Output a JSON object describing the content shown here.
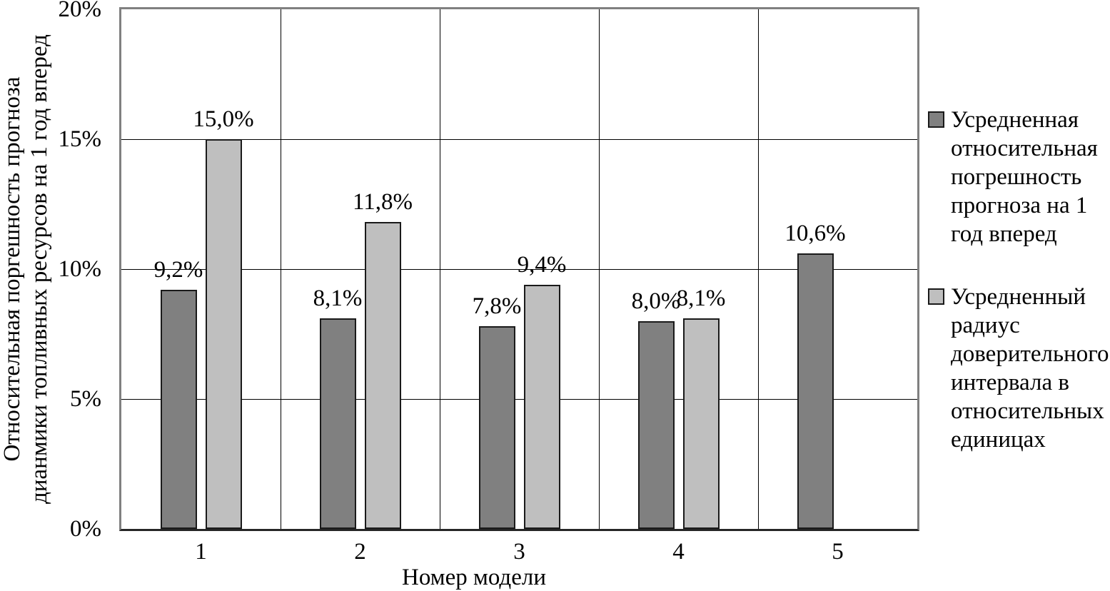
{
  "chart_data": {
    "type": "bar",
    "categories": [
      "1",
      "2",
      "3",
      "4",
      "5"
    ],
    "series": [
      {
        "name": "Усредненная относительная погрешность прогноза на 1 год вперед",
        "color": "#808080",
        "values": [
          9.2,
          8.1,
          7.8,
          8.0,
          10.6
        ],
        "data_labels": [
          "9,2%",
          "8,1%",
          "7,8%",
          "8,0%",
          "10,6%"
        ]
      },
      {
        "name": "Усредненный радиус доверительного интервала в относительных единицах",
        "color": "#BFBFBF",
        "values": [
          15.0,
          11.8,
          9.4,
          8.1,
          null
        ],
        "data_labels": [
          "15,0%",
          "11,8%",
          "9,4%",
          "8,1%",
          ""
        ]
      }
    ],
    "xlabel": "Номер модели",
    "ylabel_lines": [
      "Относительная поргешность прогноза",
      "дианмики топливных ресурсов на 1 год вперед"
    ],
    "ylim": [
      0,
      20
    ],
    "yticks": [
      {
        "value": 0,
        "label": "0%"
      },
      {
        "value": 5,
        "label": "5%"
      },
      {
        "value": 10,
        "label": "10%"
      },
      {
        "value": 15,
        "label": "15%"
      },
      {
        "value": 20,
        "label": "20%"
      }
    ],
    "grid": {
      "horizontal": true,
      "vertical": true
    },
    "legend_position": "right",
    "colors": {
      "bar_border": "#1a1a1a",
      "plot_border": "#808080",
      "axis_line": "#262626",
      "gridline": "#000000",
      "text": "#000000"
    }
  }
}
